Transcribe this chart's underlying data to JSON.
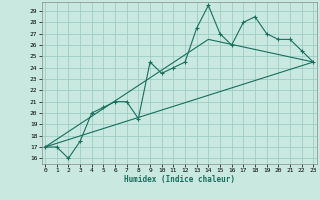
{
  "xlabel": "Humidex (Indice chaleur)",
  "background_color": "#c8e8e0",
  "grid_color": "#9ecec4",
  "line_color": "#1a6e5e",
  "x_ticks": [
    0,
    1,
    2,
    3,
    4,
    5,
    6,
    7,
    8,
    9,
    10,
    11,
    12,
    13,
    14,
    15,
    16,
    17,
    18,
    19,
    20,
    21,
    22,
    23
  ],
  "y_ticks": [
    16,
    17,
    18,
    19,
    20,
    21,
    22,
    23,
    24,
    25,
    26,
    27,
    28,
    29
  ],
  "xlim": [
    -0.3,
    23.3
  ],
  "ylim": [
    15.5,
    29.8
  ],
  "series1_x": [
    0,
    1,
    2,
    3,
    4,
    5,
    6,
    7,
    8,
    9,
    10,
    11,
    12,
    13,
    14,
    15,
    16,
    17,
    18,
    19,
    20,
    21,
    22,
    23
  ],
  "series1_y": [
    17,
    17,
    16,
    17.5,
    20,
    20.5,
    21,
    21,
    19.5,
    24.5,
    23.5,
    24,
    24.5,
    27.5,
    29.5,
    27,
    26,
    28,
    28.5,
    27,
    26.5,
    26.5,
    25.5,
    24.5
  ],
  "series2_x": [
    0,
    23
  ],
  "series2_y": [
    17,
    24.5
  ],
  "series3_x": [
    0,
    14,
    23
  ],
  "series3_y": [
    17,
    26.5,
    24.5
  ]
}
